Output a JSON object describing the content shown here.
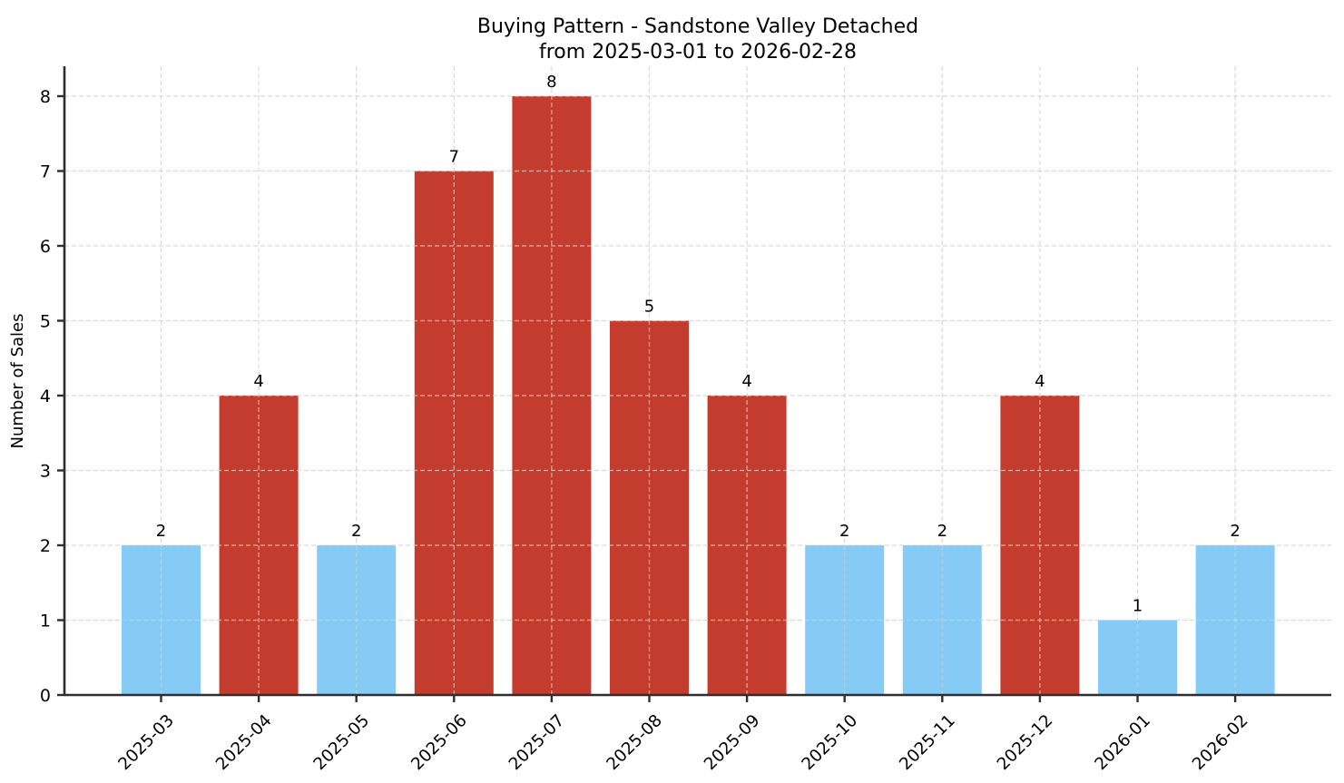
{
  "chart_data": {
    "type": "bar",
    "title_line1": "Buying Pattern - Sandstone Valley Detached",
    "title_line2": "from 2025-03-01 to 2026-02-28",
    "ylabel": "Number of Sales",
    "xlabel": "",
    "categories": [
      "2025-03",
      "2025-04",
      "2025-05",
      "2025-06",
      "2025-07",
      "2025-08",
      "2025-09",
      "2025-10",
      "2025-11",
      "2025-12",
      "2026-01",
      "2026-02"
    ],
    "values": [
      2,
      4,
      2,
      7,
      8,
      5,
      4,
      2,
      2,
      4,
      1,
      2
    ],
    "bar_colors": [
      "#85CBF5",
      "#C43C2D",
      "#85CBF5",
      "#C43C2D",
      "#C43C2D",
      "#C43C2D",
      "#C43C2D",
      "#85CBF5",
      "#85CBF5",
      "#C43C2D",
      "#85CBF5",
      "#85CBF5"
    ],
    "yticks": [
      0,
      1,
      2,
      3,
      4,
      5,
      6,
      7,
      8
    ],
    "ylim": [
      0,
      8.4
    ],
    "grid": true,
    "grid_style": "dashed",
    "legend": null,
    "colors": {
      "bar_low": "#85CBF5",
      "bar_high": "#C43C2D",
      "grid": "#cfcfcf",
      "axis": "#2e2e2e",
      "text": "#000000",
      "background": "#ffffff"
    }
  }
}
